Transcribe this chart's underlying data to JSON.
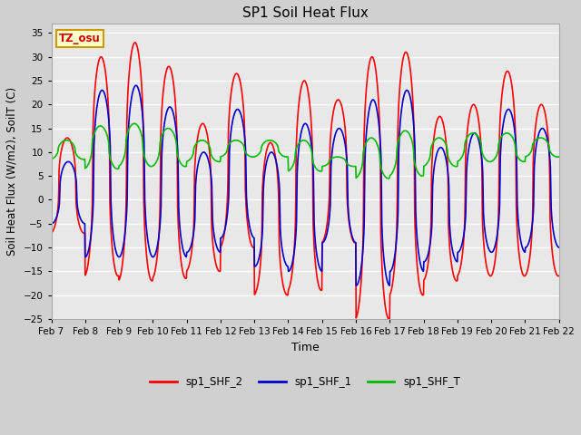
{
  "title": "SP1 Soil Heat Flux",
  "xlabel": "Time",
  "ylabel": "Soil Heat Flux (W/m2), SoilT (C)",
  "ylim": [
    -25,
    37
  ],
  "yticks": [
    -25,
    -20,
    -15,
    -10,
    -5,
    0,
    5,
    10,
    15,
    20,
    25,
    30,
    35
  ],
  "xtick_labels": [
    "Feb 7",
    "Feb 8",
    "Feb 9",
    "Feb 10",
    "Feb 11",
    "Feb 12",
    "Feb 13",
    "Feb 14",
    "Feb 15",
    "Feb 16",
    "Feb 17",
    "Feb 18",
    "Feb 19",
    "Feb 20",
    "Feb 21",
    "Feb 22"
  ],
  "line_colors": {
    "shf2": "#ff0000",
    "shf1": "#0000cc",
    "shfT": "#00bb00"
  },
  "line_widths": {
    "shf2": 1.2,
    "shf1": 1.2,
    "shfT": 1.2
  },
  "legend_labels": [
    "sp1_SHF_2",
    "sp1_SHF_1",
    "sp1_SHF_T"
  ],
  "fig_bg": "#d0d0d0",
  "plot_bg": "#e8e8e8",
  "grid_color": "#ffffff",
  "annotation_text": "TZ_osu",
  "annotation_bg": "#ffffcc",
  "annotation_border": "#cc9900",
  "shf2_peaks": [
    13,
    30,
    33,
    28,
    16,
    26.5,
    12,
    25,
    21,
    30,
    31,
    17.5,
    20,
    27,
    20
  ],
  "shf2_troughs": [
    -7,
    -16,
    -17,
    -16.5,
    -15,
    -10,
    -20,
    -19,
    -9,
    -25,
    -20,
    -17,
    -16,
    -16,
    -16
  ],
  "shf1_peaks": [
    8,
    23,
    24,
    19.5,
    10,
    19,
    10,
    16,
    15,
    21,
    23,
    11,
    14,
    19,
    15
  ],
  "shf1_troughs": [
    -5,
    -12,
    -12,
    -12,
    -11,
    -8,
    -14,
    -15,
    -9,
    -18,
    -15,
    -13,
    -11,
    -11,
    -10
  ],
  "shfT_peaks": [
    12.5,
    15.5,
    16,
    15,
    12.5,
    12.5,
    12.5,
    12.5,
    9,
    13,
    14.5,
    13,
    14,
    14,
    13
  ],
  "shfT_troughs": [
    8.5,
    6.5,
    7,
    7,
    8,
    9,
    9,
    6,
    7,
    4.5,
    5,
    7,
    8,
    8,
    9
  ]
}
